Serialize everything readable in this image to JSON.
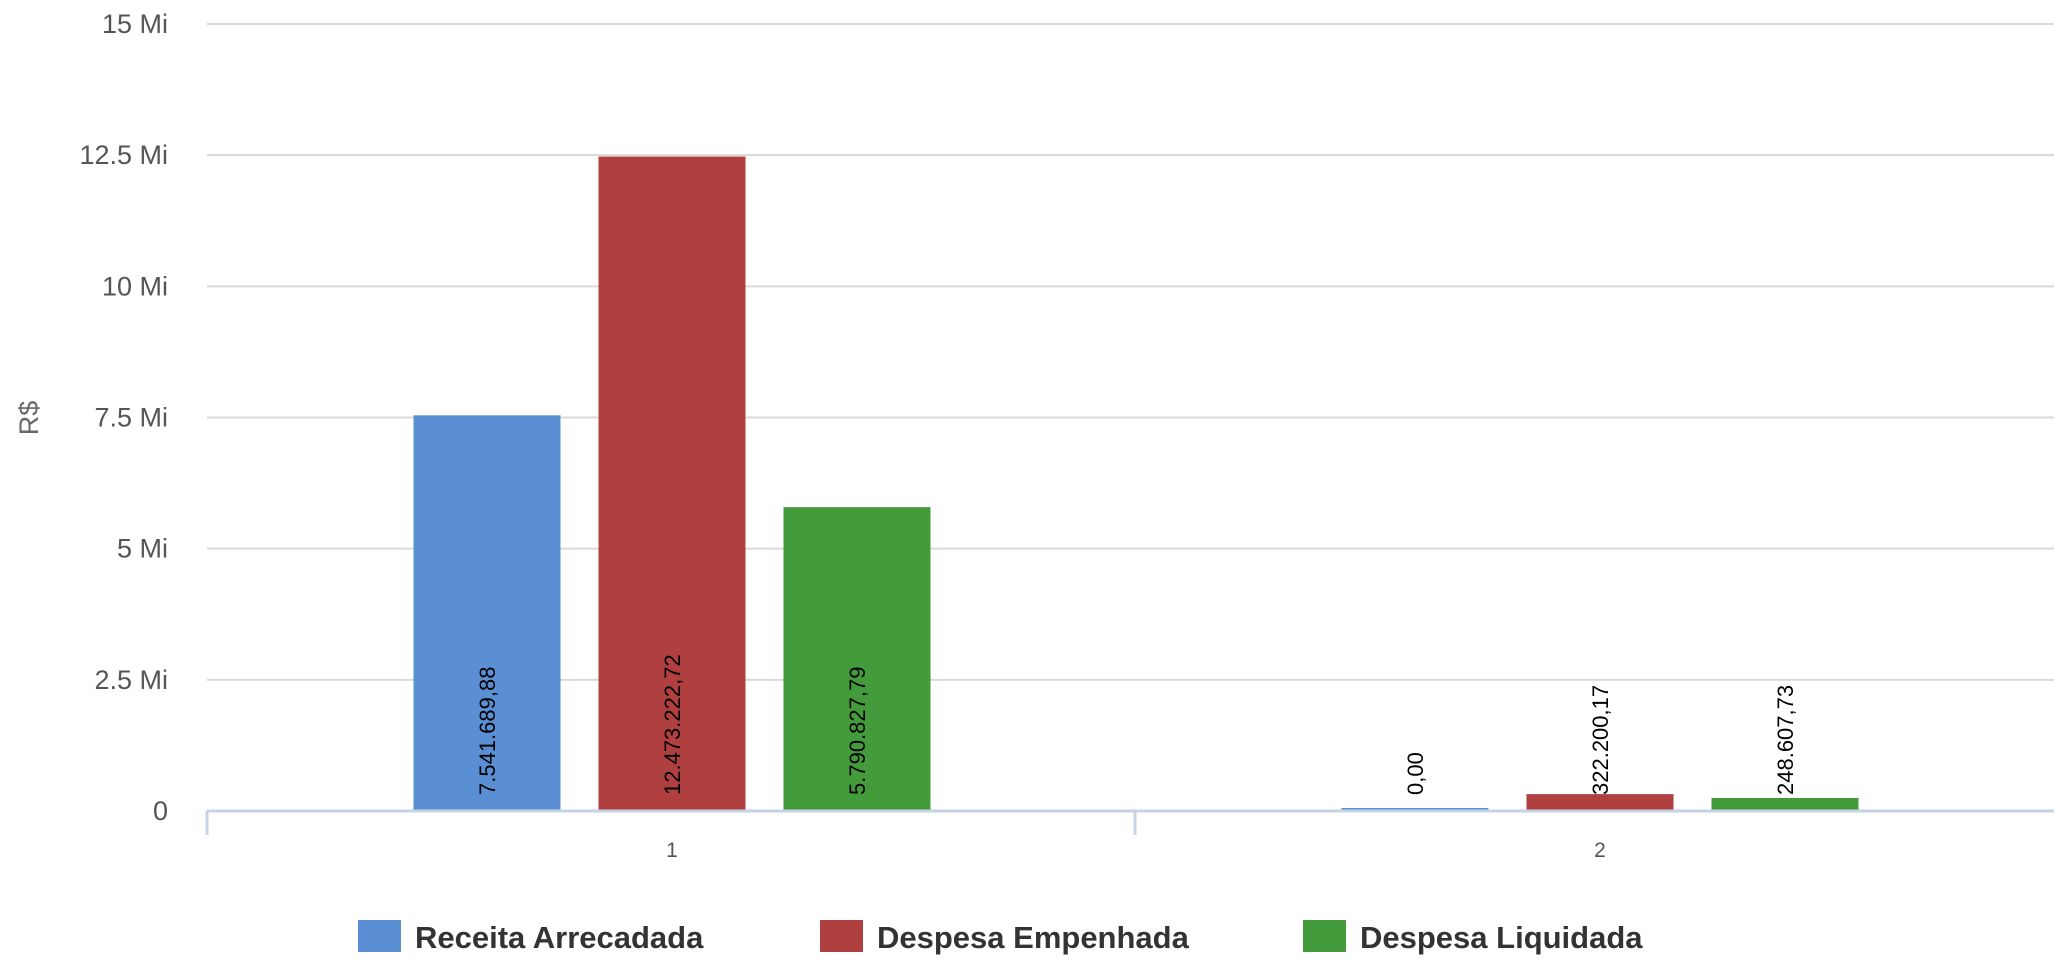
{
  "chart_data": {
    "type": "bar",
    "title": "",
    "xlabel": "",
    "ylabel": "R$",
    "ylim": [
      0,
      15000000
    ],
    "yticks": [
      {
        "value": 0,
        "label": "0"
      },
      {
        "value": 2500000,
        "label": "2.5 Mi"
      },
      {
        "value": 5000000,
        "label": "5 Mi"
      },
      {
        "value": 7500000,
        "label": "7.5 Mi"
      },
      {
        "value": 10000000,
        "label": "10 Mi"
      },
      {
        "value": 12500000,
        "label": "12.5 Mi"
      },
      {
        "value": 15000000,
        "label": "15 Mi"
      }
    ],
    "grid": true,
    "legend_position": "bottom",
    "categories": [
      "1",
      "2"
    ],
    "series": [
      {
        "name": "Receita Arrecadada",
        "color": "#5A8FD3",
        "values": [
          7541689.88,
          0
        ],
        "labels": [
          "7.541.689,88",
          "0,00"
        ]
      },
      {
        "name": "Despesa Empenhada",
        "color": "#B03F3F",
        "values": [
          12473222.72,
          322200.17
        ],
        "labels": [
          "12.473.222,72",
          "322.200,17"
        ]
      },
      {
        "name": "Despesa Liquidada",
        "color": "#439B3B",
        "values": [
          5790827.79,
          248607.73
        ],
        "labels": [
          "5.790.827,79",
          "248.607,73"
        ]
      }
    ]
  }
}
